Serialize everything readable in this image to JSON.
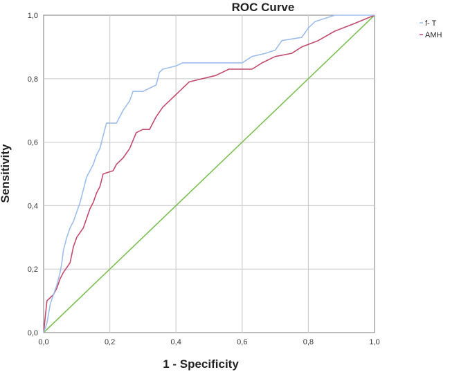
{
  "chart_data": {
    "type": "line",
    "title": "ROC Curve",
    "xlabel": "1 - Specificity",
    "ylabel": "Sensitivity",
    "xlim": [
      0,
      1
    ],
    "ylim": [
      0,
      1
    ],
    "x_ticks": [
      "0,0",
      "0,2",
      "0,4",
      "0,6",
      "0,8",
      "1,0"
    ],
    "y_ticks": [
      "0,0",
      "0,2",
      "0,4",
      "0,6",
      "0,8",
      "1,0"
    ],
    "grid": true,
    "legend_position": "outside-right",
    "series": [
      {
        "name": "f- T",
        "color": "#9dbdec",
        "points": [
          [
            0,
            0
          ],
          [
            0.01,
            0.03
          ],
          [
            0.015,
            0.06
          ],
          [
            0.02,
            0.09
          ],
          [
            0.03,
            0.12
          ],
          [
            0.04,
            0.15
          ],
          [
            0.05,
            0.19
          ],
          [
            0.055,
            0.22
          ],
          [
            0.06,
            0.26
          ],
          [
            0.07,
            0.3
          ],
          [
            0.08,
            0.33
          ],
          [
            0.09,
            0.35
          ],
          [
            0.1,
            0.38
          ],
          [
            0.11,
            0.41
          ],
          [
            0.12,
            0.45
          ],
          [
            0.13,
            0.49
          ],
          [
            0.14,
            0.51
          ],
          [
            0.15,
            0.53
          ],
          [
            0.16,
            0.56
          ],
          [
            0.17,
            0.58
          ],
          [
            0.18,
            0.62
          ],
          [
            0.19,
            0.66
          ],
          [
            0.22,
            0.66
          ],
          [
            0.24,
            0.7
          ],
          [
            0.26,
            0.73
          ],
          [
            0.27,
            0.76
          ],
          [
            0.3,
            0.76
          ],
          [
            0.34,
            0.78
          ],
          [
            0.35,
            0.82
          ],
          [
            0.36,
            0.83
          ],
          [
            0.4,
            0.84
          ],
          [
            0.42,
            0.85
          ],
          [
            0.6,
            0.85
          ],
          [
            0.63,
            0.87
          ],
          [
            0.67,
            0.88
          ],
          [
            0.7,
            0.89
          ],
          [
            0.72,
            0.92
          ],
          [
            0.78,
            0.93
          ],
          [
            0.8,
            0.96
          ],
          [
            0.82,
            0.98
          ],
          [
            0.88,
            1.0
          ],
          [
            1.0,
            1.0
          ]
        ]
      },
      {
        "name": "AMH",
        "color": "#c24a6d",
        "points": [
          [
            0,
            0
          ],
          [
            0.005,
            0.05
          ],
          [
            0.01,
            0.1
          ],
          [
            0.02,
            0.11
          ],
          [
            0.03,
            0.12
          ],
          [
            0.04,
            0.14
          ],
          [
            0.05,
            0.17
          ],
          [
            0.06,
            0.19
          ],
          [
            0.08,
            0.22
          ],
          [
            0.09,
            0.27
          ],
          [
            0.1,
            0.3
          ],
          [
            0.12,
            0.33
          ],
          [
            0.14,
            0.39
          ],
          [
            0.15,
            0.41
          ],
          [
            0.16,
            0.44
          ],
          [
            0.17,
            0.46
          ],
          [
            0.18,
            0.5
          ],
          [
            0.21,
            0.51
          ],
          [
            0.22,
            0.53
          ],
          [
            0.24,
            0.55
          ],
          [
            0.26,
            0.58
          ],
          [
            0.28,
            0.63
          ],
          [
            0.3,
            0.64
          ],
          [
            0.32,
            0.64
          ],
          [
            0.34,
            0.68
          ],
          [
            0.36,
            0.71
          ],
          [
            0.38,
            0.73
          ],
          [
            0.41,
            0.76
          ],
          [
            0.44,
            0.79
          ],
          [
            0.52,
            0.81
          ],
          [
            0.56,
            0.83
          ],
          [
            0.63,
            0.83
          ],
          [
            0.66,
            0.85
          ],
          [
            0.7,
            0.87
          ],
          [
            0.75,
            0.88
          ],
          [
            0.78,
            0.9
          ],
          [
            0.83,
            0.92
          ],
          [
            0.88,
            0.95
          ],
          [
            0.93,
            0.97
          ],
          [
            1.0,
            1.0
          ]
        ]
      },
      {
        "name": "",
        "color": "#7cbf54",
        "points": [
          [
            0,
            0
          ],
          [
            1,
            1
          ]
        ]
      }
    ]
  }
}
